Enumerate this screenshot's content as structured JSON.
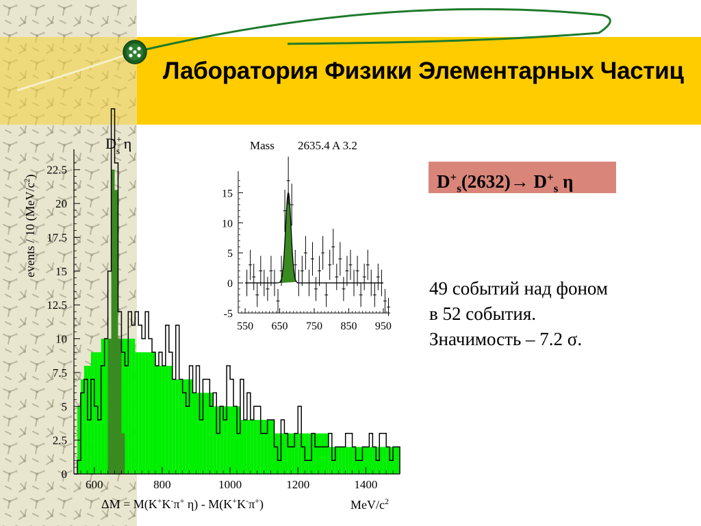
{
  "header": {
    "title": "Лаборатория Физики Элементарных Частиц"
  },
  "reaction": {
    "parent": "D",
    "parent_sup": "+",
    "parent_sub": "s",
    "parent_mass": "(2632)→ D",
    "daughter_sup": "+",
    "daughter_sub": "s",
    "daughter_tail": " η"
  },
  "result": {
    "line1": "49 событий над фоном",
    "line2": "в 52 события.",
    "line3": "Значимость – 7.2 σ."
  },
  "colors": {
    "header": "#ffcc00",
    "side_panel": "#e9e6cf",
    "signal_fill": "#3a8a22",
    "background_fill": "#00ee00",
    "reaction_box": "#d9857a",
    "logo": "#1b5e20"
  },
  "chart_data": [
    {
      "type": "bar",
      "name": "main",
      "label": {
        "base": "D",
        "sup": "+",
        "sub": "s",
        "tail": " η"
      },
      "ylabel": {
        "text": "events / 10 (MeV/c",
        "sup": "2",
        "end": ")"
      },
      "xlabel": {
        "prefix": "ΔM =  M(K",
        "s1": "+",
        "p1": "K",
        "s2": "-",
        "p2": "π",
        "s3": "+",
        "p3": " η) - M(K",
        "s4": "+",
        "p4": "K",
        "s5": "-",
        "p5": "π",
        "s6": "+",
        "p6": ")"
      },
      "unit": {
        "text": "MeV/c",
        "sup": "2"
      },
      "xlim": [
        540,
        1500
      ],
      "ylim": [
        0,
        23.5
      ],
      "xticks": [
        "600",
        "800",
        "1000",
        "1200",
        "1400"
      ],
      "yticks": [
        "0",
        "2.5",
        "5",
        "7.5",
        "10",
        "12.5",
        "15",
        "17.5",
        "20",
        "22.5"
      ],
      "bin_edges_start": 540,
      "bin_width": 10,
      "data_histogram": [
        0,
        1,
        6,
        7,
        4,
        7,
        5,
        4,
        8,
        10,
        15,
        27,
        23,
        12,
        9,
        8,
        12,
        11,
        12,
        11,
        10,
        12,
        10,
        9,
        8,
        9,
        8,
        11,
        9,
        7,
        11,
        7,
        6,
        5,
        8,
        6,
        8,
        4,
        7,
        7,
        5,
        6,
        3,
        5,
        4,
        8,
        7,
        5,
        3,
        7,
        4,
        6,
        4,
        5,
        5,
        3,
        3,
        4,
        4,
        2,
        1,
        4,
        3,
        2,
        2,
        3,
        5,
        2,
        1,
        1,
        3,
        2,
        2,
        2,
        2,
        3,
        1,
        2,
        2,
        2,
        3,
        3,
        2,
        1,
        1,
        2,
        2,
        3,
        2,
        1,
        3,
        3,
        2,
        1,
        2,
        2
      ],
      "background_fit": [
        0,
        5,
        7,
        8,
        8,
        9,
        9,
        9,
        10,
        10,
        10,
        10,
        10,
        10,
        10,
        10,
        10,
        10,
        9,
        9,
        9,
        9,
        9,
        9,
        8,
        8,
        8,
        8,
        8,
        7,
        7,
        7,
        7,
        7,
        7,
        6,
        6,
        6,
        6,
        6,
        6,
        5,
        5,
        5,
        5,
        5,
        5,
        5,
        5,
        4,
        4,
        4,
        4,
        4,
        4,
        4,
        4,
        4,
        4,
        3,
        3,
        3,
        3,
        3,
        3,
        3,
        3,
        3,
        3,
        3,
        3,
        3,
        3,
        3,
        3,
        2,
        2,
        2,
        2,
        2,
        2,
        2,
        2,
        2,
        2,
        2,
        2,
        2,
        2,
        2,
        2,
        2,
        2,
        2,
        2,
        2
      ],
      "signal_peak": [
        0,
        0,
        0,
        0,
        0,
        0,
        0,
        0,
        0,
        0,
        10,
        22.5,
        21,
        10,
        3,
        0,
        0,
        0,
        0,
        0,
        0,
        0,
        0,
        0,
        0,
        0,
        0,
        0,
        0,
        0,
        0,
        0,
        0,
        0,
        0,
        0,
        0,
        0,
        0,
        0,
        0,
        0,
        0,
        0,
        0,
        0,
        0,
        0,
        0,
        0,
        0,
        0,
        0,
        0,
        0,
        0,
        0,
        0,
        0,
        0,
        0,
        0,
        0,
        0,
        0,
        0,
        0,
        0,
        0,
        0,
        0,
        0,
        0,
        0,
        0,
        0,
        0,
        0,
        0,
        0,
        0,
        0,
        0,
        0,
        0,
        0,
        0,
        0,
        0,
        0,
        0,
        0,
        0,
        0,
        0,
        0
      ]
    },
    {
      "type": "scatter",
      "name": "inset",
      "title": {
        "mass_label": "Mass",
        "fit_values": "2635.4 A 3.2"
      },
      "xlim": [
        530,
        970
      ],
      "ylim": [
        -5,
        18
      ],
      "xticks": [
        "550",
        "650",
        "750",
        "850",
        "950"
      ],
      "yticks": [
        "-5",
        "0",
        "5",
        "10",
        "15"
      ],
      "points": [
        {
          "x": 555,
          "y": 0,
          "err": 2.2
        },
        {
          "x": 565,
          "y": 3,
          "err": 2.5
        },
        {
          "x": 575,
          "y": 1,
          "err": 2.2
        },
        {
          "x": 585,
          "y": -2,
          "err": 2.0
        },
        {
          "x": 595,
          "y": 2,
          "err": 2.5
        },
        {
          "x": 605,
          "y": 0,
          "err": 2.2
        },
        {
          "x": 615,
          "y": -1,
          "err": 2.0
        },
        {
          "x": 625,
          "y": 2,
          "err": 2.5
        },
        {
          "x": 635,
          "y": 0,
          "err": 2.2
        },
        {
          "x": 645,
          "y": -3,
          "err": 2.0
        },
        {
          "x": 655,
          "y": 2,
          "err": 2.5
        },
        {
          "x": 665,
          "y": 12,
          "err": 3.5
        },
        {
          "x": 675,
          "y": 17,
          "err": 4.0
        },
        {
          "x": 685,
          "y": 13,
          "err": 3.5
        },
        {
          "x": 695,
          "y": 3,
          "err": 2.5
        },
        {
          "x": 705,
          "y": 0,
          "err": 2.2
        },
        {
          "x": 715,
          "y": 2,
          "err": 2.5
        },
        {
          "x": 725,
          "y": 5,
          "err": 2.8
        },
        {
          "x": 735,
          "y": 0,
          "err": 2.2
        },
        {
          "x": 745,
          "y": 4,
          "err": 2.8
        },
        {
          "x": 755,
          "y": -1,
          "err": 2.0
        },
        {
          "x": 765,
          "y": 2,
          "err": 2.5
        },
        {
          "x": 775,
          "y": 5,
          "err": 2.8
        },
        {
          "x": 785,
          "y": -2,
          "err": 2.0
        },
        {
          "x": 795,
          "y": 3,
          "err": 2.5
        },
        {
          "x": 805,
          "y": 6,
          "err": 3.0
        },
        {
          "x": 815,
          "y": 1,
          "err": 2.2
        },
        {
          "x": 825,
          "y": 4,
          "err": 2.8
        },
        {
          "x": 835,
          "y": -1,
          "err": 2.0
        },
        {
          "x": 845,
          "y": 2,
          "err": 2.5
        },
        {
          "x": 855,
          "y": 3,
          "err": 2.5
        },
        {
          "x": 865,
          "y": 0,
          "err": 2.2
        },
        {
          "x": 875,
          "y": 2,
          "err": 2.5
        },
        {
          "x": 885,
          "y": -2,
          "err": 2.0
        },
        {
          "x": 895,
          "y": 1,
          "err": 2.2
        },
        {
          "x": 905,
          "y": 3,
          "err": 2.5
        },
        {
          "x": 915,
          "y": 0,
          "err": 2.2
        },
        {
          "x": 925,
          "y": -2,
          "err": 2.0
        },
        {
          "x": 935,
          "y": 1,
          "err": 2.2
        },
        {
          "x": 945,
          "y": 0,
          "err": 2.2
        },
        {
          "x": 955,
          "y": -3,
          "err": 2.0
        },
        {
          "x": 965,
          "y": -4,
          "err": 1.5
        }
      ],
      "fit": {
        "mean": 675,
        "sigma": 8,
        "amplitude": 15,
        "baseline": 0
      }
    }
  ]
}
